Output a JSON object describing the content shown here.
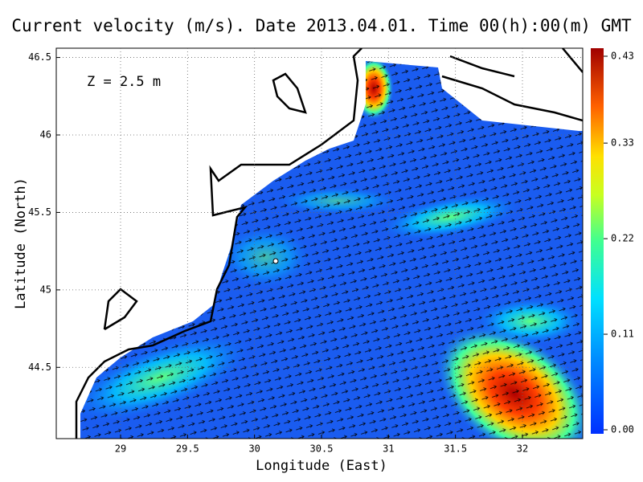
{
  "chart_data": {
    "type": "vector-field",
    "title": "Current velocity (m/s). Date 2013.04.01. Time 00(h):00(m) GMT",
    "annotation": "Z = 2.5 m",
    "xlabel": "Longitude (East)",
    "ylabel": "Latitude (North)",
    "xlim": [
      28.52,
      32.45
    ],
    "xticks": [
      29,
      29.5,
      30,
      30.5,
      31,
      31.5,
      32
    ],
    "ylim": [
      44.04,
      46.56
    ],
    "yticks": [
      44.5,
      45,
      45.5,
      46,
      46.5
    ],
    "grid": true,
    "colorbar": {
      "lim": [
        0,
        0.43
      ],
      "ticks": [
        {
          "value": 0,
          "label": "0.00"
        },
        0.11,
        0.22,
        0.33,
        0.43
      ]
    }
  }
}
